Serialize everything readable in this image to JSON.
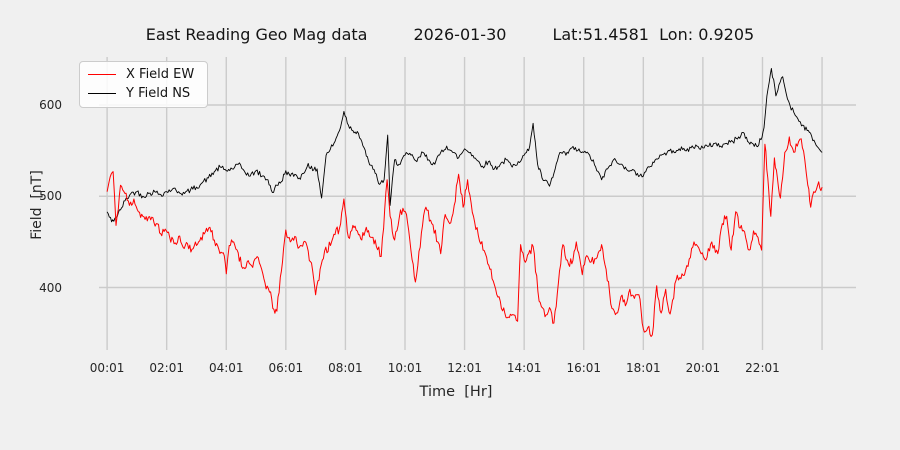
{
  "title": {
    "main": "East Reading Geo Mag data",
    "date": "2026-01-30",
    "coords": "Lat:51.4581  Lon: 0.9205"
  },
  "colors": {
    "background": "#f0f0f0",
    "grid": "#cbcbcb",
    "text": "#262626",
    "x_series": "#ff0000",
    "y_series": "#000000",
    "legend_bg": "#fcfcfc",
    "legend_border": "#cccccc"
  },
  "chart_data": {
    "type": "line",
    "title": "East Reading Geo Mag data    2026-01-30    Lat:51.4581  Lon: 0.9205",
    "xlabel": "Time  [Hr]",
    "ylabel": "Field  [nT]",
    "grid": true,
    "x_unit": "hours since 00:01",
    "xlim_hours": [
      -0.25,
      25.1
    ],
    "ylim": [
      332,
      652
    ],
    "yticks": [
      400,
      500,
      600
    ],
    "x_gridline_hours": [
      0,
      2,
      4,
      6,
      8,
      10,
      12,
      14,
      16,
      18,
      20,
      22,
      24
    ],
    "xticks": [
      {
        "hour": 0,
        "label": "00:01"
      },
      {
        "hour": 2,
        "label": "02:01"
      },
      {
        "hour": 4,
        "label": "04:01"
      },
      {
        "hour": 6,
        "label": "06:01"
      },
      {
        "hour": 8,
        "label": "08:01"
      },
      {
        "hour": 10,
        "label": "10:01"
      },
      {
        "hour": 12,
        "label": "12:01"
      },
      {
        "hour": 14,
        "label": "14:01"
      },
      {
        "hour": 16,
        "label": "16:01"
      },
      {
        "hour": 18,
        "label": "18:01"
      },
      {
        "hour": 20,
        "label": "20:01"
      },
      {
        "hour": 22,
        "label": "22:01"
      }
    ],
    "legend": {
      "position": "upper left",
      "entries": [
        "X Field EW",
        "Y Field NS"
      ]
    },
    "series": [
      {
        "name": "Y Field NS",
        "color": "#000000",
        "line_width": 0.9,
        "noise_amplitude_nT": 3,
        "noise_seed": 42,
        "points": [
          [
            0.0,
            483
          ],
          [
            0.15,
            472
          ],
          [
            0.3,
            477
          ],
          [
            0.45,
            485
          ],
          [
            0.6,
            495
          ],
          [
            0.8,
            503
          ],
          [
            1.0,
            505
          ],
          [
            1.2,
            500
          ],
          [
            1.4,
            503
          ],
          [
            1.6,
            505
          ],
          [
            1.8,
            502
          ],
          [
            2.0,
            505
          ],
          [
            2.2,
            508
          ],
          [
            2.4,
            505
          ],
          [
            2.6,
            503
          ],
          [
            2.8,
            507
          ],
          [
            3.0,
            510
          ],
          [
            3.2,
            515
          ],
          [
            3.4,
            520
          ],
          [
            3.6,
            527
          ],
          [
            3.8,
            532
          ],
          [
            4.0,
            528
          ],
          [
            4.2,
            530
          ],
          [
            4.4,
            535
          ],
          [
            4.6,
            528
          ],
          [
            4.8,
            522
          ],
          [
            5.0,
            528
          ],
          [
            5.2,
            522
          ],
          [
            5.4,
            518
          ],
          [
            5.55,
            504
          ],
          [
            5.7,
            512
          ],
          [
            5.85,
            516
          ],
          [
            6.0,
            528
          ],
          [
            6.15,
            522
          ],
          [
            6.3,
            524
          ],
          [
            6.45,
            520
          ],
          [
            6.6,
            525
          ],
          [
            6.75,
            536
          ],
          [
            6.9,
            528
          ],
          [
            7.05,
            530
          ],
          [
            7.2,
            498
          ],
          [
            7.35,
            545
          ],
          [
            7.5,
            552
          ],
          [
            7.65,
            560
          ],
          [
            7.8,
            572
          ],
          [
            7.95,
            593
          ],
          [
            8.1,
            578
          ],
          [
            8.25,
            572
          ],
          [
            8.4,
            571
          ],
          [
            8.55,
            560
          ],
          [
            8.7,
            544
          ],
          [
            8.85,
            534
          ],
          [
            9.0,
            525
          ],
          [
            9.15,
            513
          ],
          [
            9.3,
            518
          ],
          [
            9.42,
            567
          ],
          [
            9.5,
            490
          ],
          [
            9.65,
            540
          ],
          [
            9.8,
            535
          ],
          [
            10.0,
            545
          ],
          [
            10.2,
            545
          ],
          [
            10.4,
            538
          ],
          [
            10.6,
            548
          ],
          [
            10.8,
            540
          ],
          [
            11.0,
            535
          ],
          [
            11.2,
            548
          ],
          [
            11.4,
            555
          ],
          [
            11.6,
            548
          ],
          [
            11.8,
            542
          ],
          [
            12.0,
            552
          ],
          [
            12.2,
            548
          ],
          [
            12.4,
            540
          ],
          [
            12.6,
            533
          ],
          [
            12.8,
            538
          ],
          [
            13.0,
            530
          ],
          [
            13.2,
            535
          ],
          [
            13.4,
            540
          ],
          [
            13.6,
            532
          ],
          [
            13.8,
            538
          ],
          [
            14.0,
            545
          ],
          [
            14.15,
            550
          ],
          [
            14.3,
            580
          ],
          [
            14.45,
            535
          ],
          [
            14.6,
            520
          ],
          [
            14.85,
            511
          ],
          [
            15.0,
            525
          ],
          [
            15.2,
            548
          ],
          [
            15.4,
            545
          ],
          [
            15.6,
            553
          ],
          [
            15.8,
            550
          ],
          [
            16.0,
            548
          ],
          [
            16.2,
            545
          ],
          [
            16.4,
            532
          ],
          [
            16.6,
            518
          ],
          [
            16.8,
            530
          ],
          [
            17.0,
            540
          ],
          [
            17.2,
            535
          ],
          [
            17.4,
            532
          ],
          [
            17.6,
            528
          ],
          [
            17.8,
            525
          ],
          [
            18.0,
            522
          ],
          [
            18.2,
            532
          ],
          [
            18.4,
            540
          ],
          [
            18.6,
            545
          ],
          [
            18.8,
            548
          ],
          [
            19.0,
            550
          ],
          [
            19.2,
            552
          ],
          [
            19.4,
            550
          ],
          [
            19.6,
            553
          ],
          [
            19.8,
            555
          ],
          [
            20.0,
            553
          ],
          [
            20.2,
            555
          ],
          [
            20.4,
            558
          ],
          [
            20.6,
            555
          ],
          [
            20.8,
            558
          ],
          [
            21.0,
            560
          ],
          [
            21.2,
            565
          ],
          [
            21.35,
            570
          ],
          [
            21.5,
            560
          ],
          [
            21.65,
            558
          ],
          [
            21.8,
            555
          ],
          [
            21.95,
            562
          ],
          [
            22.05,
            575
          ],
          [
            22.15,
            610
          ],
          [
            22.3,
            640
          ],
          [
            22.45,
            610
          ],
          [
            22.55,
            622
          ],
          [
            22.68,
            631
          ],
          [
            22.8,
            612
          ],
          [
            22.92,
            600
          ],
          [
            23.05,
            592
          ],
          [
            23.15,
            587
          ],
          [
            23.35,
            578
          ],
          [
            23.5,
            572
          ],
          [
            23.65,
            566
          ],
          [
            23.8,
            556
          ],
          [
            24.0,
            548
          ]
        ]
      },
      {
        "name": "X Field EW",
        "color": "#ff0000",
        "line_width": 1.0,
        "noise_amplitude_nT": 5,
        "noise_seed": 11,
        "points": [
          [
            0.0,
            505
          ],
          [
            0.1,
            521
          ],
          [
            0.2,
            527
          ],
          [
            0.3,
            468
          ],
          [
            0.45,
            512
          ],
          [
            0.6,
            503
          ],
          [
            0.75,
            490
          ],
          [
            0.9,
            497
          ],
          [
            1.05,
            483
          ],
          [
            1.2,
            478
          ],
          [
            1.35,
            473
          ],
          [
            1.5,
            477
          ],
          [
            1.65,
            470
          ],
          [
            1.8,
            459
          ],
          [
            1.95,
            464
          ],
          [
            2.1,
            455
          ],
          [
            2.25,
            448
          ],
          [
            2.4,
            456
          ],
          [
            2.55,
            444
          ],
          [
            2.7,
            448
          ],
          [
            2.85,
            442
          ],
          [
            3.0,
            446
          ],
          [
            3.15,
            455
          ],
          [
            3.3,
            461
          ],
          [
            3.45,
            466
          ],
          [
            3.6,
            452
          ],
          [
            3.75,
            442
          ],
          [
            3.9,
            438
          ],
          [
            4.0,
            415
          ],
          [
            4.1,
            446
          ],
          [
            4.25,
            450
          ],
          [
            4.4,
            438
          ],
          [
            4.55,
            421
          ],
          [
            4.7,
            428
          ],
          [
            4.85,
            424
          ],
          [
            5.0,
            432
          ],
          [
            5.15,
            424
          ],
          [
            5.3,
            405
          ],
          [
            5.45,
            395
          ],
          [
            5.6,
            376
          ],
          [
            5.7,
            374
          ],
          [
            5.85,
            418
          ],
          [
            6.0,
            463
          ],
          [
            6.15,
            450
          ],
          [
            6.3,
            456
          ],
          [
            6.45,
            444
          ],
          [
            6.6,
            450
          ],
          [
            6.75,
            440
          ],
          [
            6.9,
            418
          ],
          [
            7.0,
            392
          ],
          [
            7.15,
            420
          ],
          [
            7.3,
            440
          ],
          [
            7.5,
            446
          ],
          [
            7.65,
            458
          ],
          [
            7.8,
            465
          ],
          [
            7.95,
            497
          ],
          [
            8.1,
            455
          ],
          [
            8.25,
            468
          ],
          [
            8.4,
            462
          ],
          [
            8.55,
            452
          ],
          [
            8.7,
            466
          ],
          [
            8.85,
            455
          ],
          [
            9.0,
            452
          ],
          [
            9.2,
            434
          ],
          [
            9.4,
            518
          ],
          [
            9.5,
            478
          ],
          [
            9.65,
            452
          ],
          [
            9.85,
            485
          ],
          [
            10.05,
            480
          ],
          [
            10.2,
            440
          ],
          [
            10.35,
            406
          ],
          [
            10.55,
            460
          ],
          [
            10.7,
            488
          ],
          [
            10.9,
            470
          ],
          [
            11.1,
            450
          ],
          [
            11.2,
            437
          ],
          [
            11.35,
            480
          ],
          [
            11.5,
            470
          ],
          [
            11.65,
            490
          ],
          [
            11.8,
            524
          ],
          [
            11.95,
            488
          ],
          [
            12.1,
            518
          ],
          [
            12.3,
            478
          ],
          [
            12.5,
            451
          ],
          [
            12.7,
            437
          ],
          [
            12.85,
            420
          ],
          [
            13.0,
            403
          ],
          [
            13.2,
            385
          ],
          [
            13.35,
            372
          ],
          [
            13.5,
            367
          ],
          [
            13.65,
            370
          ],
          [
            13.78,
            363
          ],
          [
            13.88,
            447
          ],
          [
            14.0,
            430
          ],
          [
            14.15,
            437
          ],
          [
            14.3,
            445
          ],
          [
            14.5,
            385
          ],
          [
            14.7,
            368
          ],
          [
            14.85,
            378
          ],
          [
            15.0,
            361
          ],
          [
            15.15,
            405
          ],
          [
            15.3,
            447
          ],
          [
            15.45,
            430
          ],
          [
            15.6,
            426
          ],
          [
            15.75,
            450
          ],
          [
            15.95,
            414
          ],
          [
            16.1,
            435
          ],
          [
            16.25,
            428
          ],
          [
            16.45,
            433
          ],
          [
            16.6,
            447
          ],
          [
            16.75,
            420
          ],
          [
            16.95,
            377
          ],
          [
            17.1,
            372
          ],
          [
            17.25,
            390
          ],
          [
            17.4,
            380
          ],
          [
            17.55,
            398
          ],
          [
            17.7,
            388
          ],
          [
            17.85,
            392
          ],
          [
            18.0,
            355
          ],
          [
            18.15,
            356
          ],
          [
            18.3,
            348
          ],
          [
            18.45,
            402
          ],
          [
            18.6,
            372
          ],
          [
            18.75,
            398
          ],
          [
            18.9,
            371
          ],
          [
            19.1,
            408
          ],
          [
            19.3,
            415
          ],
          [
            19.5,
            423
          ],
          [
            19.7,
            450
          ],
          [
            19.9,
            440
          ],
          [
            20.1,
            430
          ],
          [
            20.3,
            450
          ],
          [
            20.5,
            437
          ],
          [
            20.65,
            470
          ],
          [
            20.8,
            478
          ],
          [
            20.95,
            441
          ],
          [
            21.1,
            483
          ],
          [
            21.25,
            465
          ],
          [
            21.4,
            461
          ],
          [
            21.55,
            441
          ],
          [
            21.7,
            462
          ],
          [
            21.85,
            455
          ],
          [
            21.97,
            441
          ],
          [
            22.08,
            557
          ],
          [
            22.18,
            520
          ],
          [
            22.28,
            478
          ],
          [
            22.4,
            542
          ],
          [
            22.5,
            520
          ],
          [
            22.6,
            498
          ],
          [
            22.75,
            548
          ],
          [
            22.9,
            565
          ],
          [
            23.05,
            548
          ],
          [
            23.17,
            555
          ],
          [
            23.3,
            563
          ],
          [
            23.42,
            540
          ],
          [
            23.52,
            512
          ],
          [
            23.62,
            488
          ],
          [
            23.72,
            505
          ],
          [
            23.85,
            512
          ],
          [
            24.0,
            510
          ]
        ]
      }
    ]
  }
}
